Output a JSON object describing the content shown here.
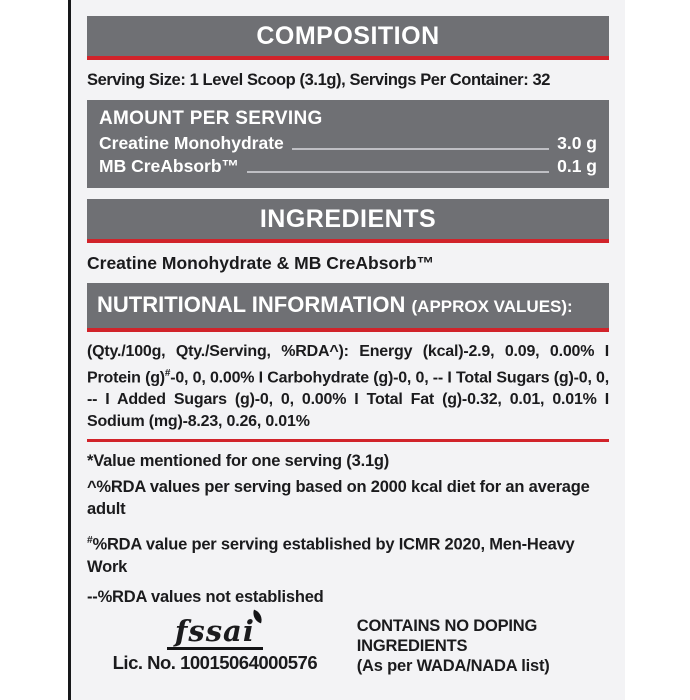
{
  "colors": {
    "bar_gray": "#6F7074",
    "accent_red": "#D1232A",
    "label_bg": "#F3F3F5",
    "leader_line": "#BFBFC4",
    "text": "#1B1B1D"
  },
  "composition": {
    "title": "COMPOSITION",
    "serving_line": "Serving Size: 1 Level Scoop (3.1g), Servings Per Container: 32"
  },
  "amount": {
    "title": "AMOUNT PER SERVING",
    "rows": [
      {
        "label": "Creatine Monohydrate",
        "value": "3.0 g"
      },
      {
        "label": "MB CreAbsorb™",
        "value": "0.1 g"
      }
    ]
  },
  "ingredients": {
    "title": "INGREDIENTS",
    "text": "Creatine Monohydrate & MB CreAbsorb™"
  },
  "nutrition": {
    "title": "NUTRITIONAL INFORMATION ",
    "title_suffix": "(APPROX VALUES):",
    "para_before_sup": "(Qty./100g, Qty./Serving, %RDA^): Energy (kcal)-2.9, 0.09, 0.00% I Protein (g)",
    "para_sup": "#",
    "para_after_sup": "-0, 0, 0.00% I Carbohydrate (g)-0, 0, -- I Total Sugars (g)-0, 0, -- I Added Sugars (g)-0, 0, 0.00% I Total Fat (g)-0.32, 0.01, 0.01% I Sodium (mg)-8.23, 0.26, 0.01%"
  },
  "footnotes": {
    "note1": "*Value mentioned for one serving (3.1g)",
    "note2": "^%RDA values per serving based on 2000 kcal diet for an average adult",
    "note3_sup": "#",
    "note3": "%RDA value per serving established by ICMR 2020, Men-Heavy Work",
    "note4": "--%RDA values not established"
  },
  "footer": {
    "fssai_text": "fssai",
    "license": "Lic. No. 10015064000576",
    "doping_line1": "CONTAINS NO DOPING",
    "doping_line2": "INGREDIENTS",
    "doping_line3": "(As per WADA/NADA list)"
  }
}
